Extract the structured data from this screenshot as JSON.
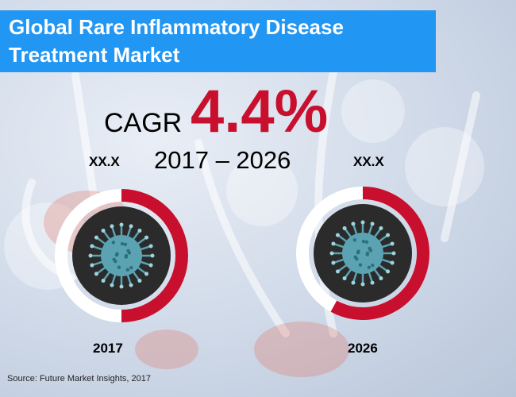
{
  "title": "Global Rare Inflammatory Disease Treatment Market",
  "cagr": {
    "label": "CAGR",
    "value": "4.4%",
    "period": "2017 – 2026"
  },
  "source": "Source: Future Market Insights, 2017",
  "colors": {
    "accent": "#c8102e",
    "title_bg": "#2196f3",
    "ring_track": "#ffffff",
    "disc": "#2b2b2b",
    "virus": "#5ba3b3"
  },
  "icons": {
    "virus": "virus-icon"
  },
  "chart_data": {
    "type": "pie",
    "categories": [
      "2017",
      "2026"
    ],
    "series": [
      {
        "values": [
          "XX.X",
          "XX.X"
        ]
      }
    ],
    "ring_fill_fraction": [
      0.5,
      0.58
    ],
    "title": "Global Rare Inflammatory Disease Treatment Market",
    "annotations": [
      "CAGR 4.4%",
      "2017 – 2026"
    ]
  }
}
